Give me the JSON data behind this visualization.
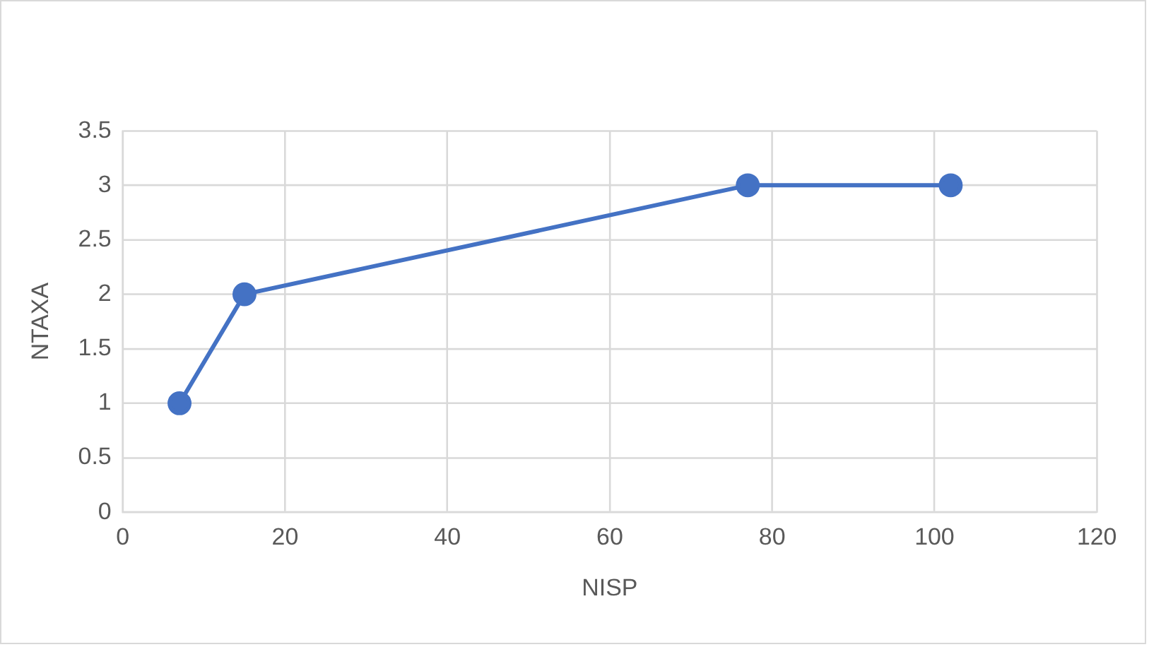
{
  "chart_data": {
    "type": "line",
    "xlabel": "NISP",
    "ylabel": "NTAXA",
    "x": [
      7,
      15,
      77,
      102
    ],
    "series": [
      {
        "color": "#4472c4",
        "values": [
          1,
          2,
          3,
          3
        ]
      }
    ],
    "xlim": [
      0,
      120
    ],
    "xticks": [
      0,
      20,
      40,
      60,
      80,
      100,
      120
    ],
    "ylim": [
      0,
      3.5
    ],
    "yticks": [
      0,
      0.5,
      1,
      1.5,
      2,
      2.5,
      3,
      3.5
    ],
    "grid": true,
    "marker": "circle",
    "line_style": "solid"
  }
}
